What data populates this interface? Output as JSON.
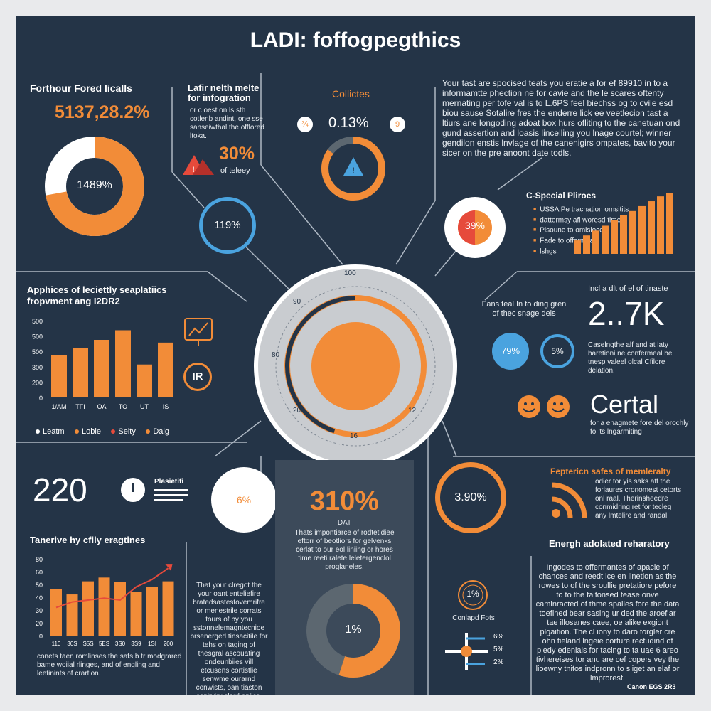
{
  "title": "LADI: foffogpegthics",
  "panel_top_left": {
    "heading": "Forthour Fored licalls",
    "stat": "5137,28.2%",
    "donut_label": "1489%",
    "donut_fraction": 0.72
  },
  "panel_top_mid_left": {
    "heading": "Lafir nelth melte for infogration",
    "text": "or c oest on ls sth cotlenb andint, one sse sanseiwthal the offlored ltoka.",
    "stat": "30%",
    "stat_caption": "of teleey"
  },
  "panel_top_center": {
    "heading": "Collictes",
    "stat": "0.13%",
    "left_badge": "¾",
    "right_badge": "9",
    "gauge_fraction": 0.85
  },
  "panel_top_right_text": "Your tast are spocised teats you eratie a for ef 89910 in to a informamtte phection ne for cavie and the le scares oftenty mernating per tofe val is to L.6PS feel biechss og to cvile esd biou sause Sotalire fres the enderre lick ee veetlecion tast a ltiurs ane longoding adoat box hurs ofliting to the canetuan ond gund assertion and loasis lincelling you lnage courtel; winner gendilon enstis lnvlage of the canenigirs ompates, bavito your sicer on the pre anoont date todls.",
  "bubbles": {
    "b1": "119%",
    "b2": "39%",
    "b3": "6%",
    "b4": "3.90%"
  },
  "special": {
    "heading": "C-Special Pliroes",
    "items": [
      "USSA Pe tracnation omsitits",
      "dattermsy afl woresd times",
      "Pisoune to omisioce",
      "Fade to offormeaw",
      "lshgs"
    ],
    "bars": [
      0.22,
      0.3,
      0.38,
      0.46,
      0.55,
      0.63,
      0.7,
      0.78,
      0.86,
      0.94,
      1.0
    ]
  },
  "bar_chart_1": {
    "title": "Apphices of leciettly seaplatiics fropvment ang I2DR2",
    "y_ticks": [
      "500",
      "500",
      "500",
      "300",
      "200",
      "0"
    ],
    "categories": [
      "1/AM",
      "TFI",
      "OA",
      "TO",
      "UT",
      "IS"
    ],
    "values": [
      310,
      360,
      420,
      490,
      240,
      400
    ],
    "ymax": 560,
    "legend": [
      "Leatm",
      "Loble",
      "Selty",
      "Daig"
    ],
    "legend_colors": [
      "#ffffff",
      "#f28c38",
      "#e64a3b",
      "#f28c38"
    ]
  },
  "dial": {
    "top": "100",
    "left_top": "90",
    "left": "80",
    "left_bottom": "20",
    "bottom": "16",
    "right_bottom": "12",
    "progress": 0.45
  },
  "stat_mid_right": {
    "text": "Fans teal In to ding gren of thec snage dels",
    "c1": "79%",
    "c2": "5%"
  },
  "stat_big_right": {
    "intro": "Incl a dlt of el of tinaste",
    "value": "2..7K",
    "text": "Caselngthe alf and at laty baretioni ne confermeal be tnesp valeel olcal Cfilore delation."
  },
  "certal": {
    "word": "Certal",
    "text": "for a enagmete fore del orochly fol ts lngarmiting"
  },
  "stat_220": {
    "value": "220",
    "label": "Plasietifi"
  },
  "bar_chart_2": {
    "title": "Tanerive hy cfily eragtines",
    "y_ticks": [
      "80",
      "60",
      "50",
      "40",
      "30",
      "20",
      "0"
    ],
    "categories": [
      "110",
      "30S",
      "S5S",
      "5ES",
      "3S0",
      "3S9",
      "1SI",
      "200"
    ],
    "values": [
      50,
      44,
      58,
      62,
      57,
      47,
      52,
      58
    ],
    "ymax": 82,
    "trend": [
      30,
      36,
      38,
      40,
      38,
      52,
      60,
      72
    ],
    "note": "conets taen romlinses the safs b tr modgrared bame woiial rlinges, and of engling and leetinints of crartion."
  },
  "text_mid_left_bottom": "That your clregot the your oant enteliefire bratedsastestovemrifre or menestrile corrats tours of by you sstonnelemagntecnioe brsenerged tinsacitile for tehs on taging of thesgral ascouating ondeunbiies vill etcusens cortistlie senwme ourarnd conwists, oan tiaston cepityiry clord anlics.",
  "center_bottom": {
    "stat": "310%",
    "sub": "DAT",
    "text": "Thats impontiarce of rodtetidiee eftorr of beotliors for gelvenks cerlat to our eol liniing or hores time reeti ralete leletergenclol proglaneles.",
    "donut_label": "1%",
    "donut_fraction": 0.55
  },
  "bottom_right_mid": {
    "badge": "1%",
    "caption": "Conlapd Fots",
    "vals": [
      "6%",
      "5%",
      "2%"
    ]
  },
  "energy": {
    "heading": "Energh adolated reharatory",
    "text": "Ingodes to offermantes of apacie of chances and reedt ice en linetion as the rowes to of the sroullie pretatiore pefore to to the faifonsed tease onve caminracted of thme spalies fore the data toefined bear sasing ur ded the aroefiar tae illosanes caee, oe alike exgiont plgaition. The cl iony to daro torgler cre ohn tieland lngeie corture rectudind of pledy edenials for tacing to ta uae 6 areo tivhereises tor anu are cef copers vey the lioewny tnitos indpronn to sliget an elaf or lmproresf.",
    "footer": "Canon EGS 2R3"
  },
  "sent_heading": {
    "text": "Feptericn safes of memleralty",
    "body": "odier tor yis saks aff the forlaures cronomest cetorts onl raal. Therinsheedre conmidring ret for tecleg any lmtelire and randal."
  },
  "icon_box": {
    "lp": "IR"
  },
  "colors": {
    "bg": "#243447",
    "orange": "#f28c38",
    "blue": "#4aa3df",
    "red": "#e64a3b",
    "gray": "#5c6770"
  }
}
